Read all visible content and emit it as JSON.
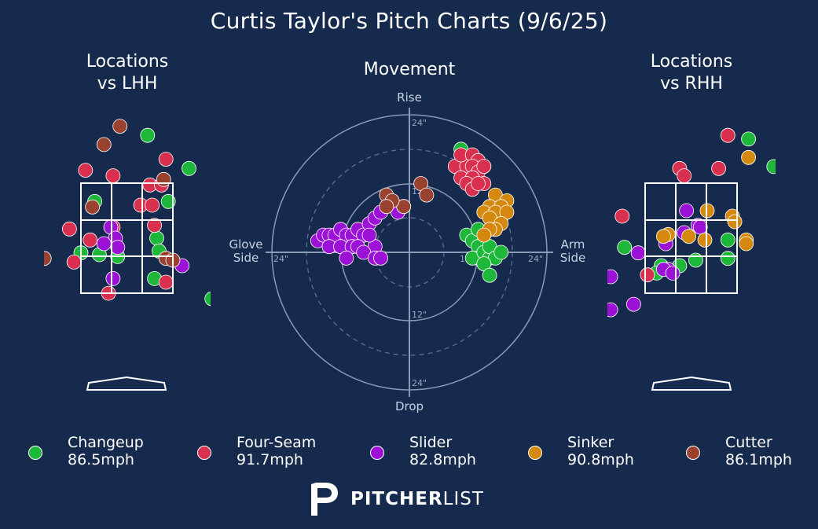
{
  "header": {
    "title": "Curtis Taylor's Pitch Charts (9/6/25)"
  },
  "panels": {
    "left_title": "Locations\nvs LHH",
    "middle_title": "Movement",
    "right_title": "Locations\nvs RHH"
  },
  "movement_axes": {
    "top": "Rise",
    "bottom": "Drop",
    "left": "Glove\nSide",
    "right": "Arm\nSide",
    "ring_labels": {
      "up_outer": "24\"",
      "up_inner": "12\"",
      "down_inner": "12\"",
      "down_outer": "24\"",
      "left_outer": "24\"",
      "right_inner": "12\"",
      "right_outer": "24\""
    }
  },
  "legend": [
    {
      "name": "Changeup",
      "speed": "86.5mph",
      "color": "#1db83a"
    },
    {
      "name": "Four-Seam",
      "speed": "91.7mph",
      "color": "#d9304f"
    },
    {
      "name": "Slider",
      "speed": "82.8mph",
      "color": "#9b12d6"
    },
    {
      "name": "Sinker",
      "speed": "90.8mph",
      "color": "#d4890e"
    },
    {
      "name": "Cutter",
      "speed": "86.1mph",
      "color": "#994230"
    }
  ],
  "brand": {
    "bold": "PITCHER",
    "light": "LIST"
  },
  "chart_data": [
    {
      "type": "scatter",
      "title": "Locations vs LHH",
      "xlim": [
        -2.5,
        2.5
      ],
      "ylim": [
        -3.2,
        3.2
      ],
      "strike_zone": {
        "x": [
          -1,
          1
        ],
        "y": [
          -1.5,
          1.5
        ]
      },
      "series": [
        {
          "name": "Changeup",
          "points": [
            [
              0.45,
              2.8
            ],
            [
              1.35,
              1.9
            ],
            [
              -0.7,
              1.0
            ],
            [
              0.9,
              1.0
            ],
            [
              2.0,
              -0.35
            ],
            [
              -0.6,
              -0.45
            ],
            [
              -1.0,
              -0.4
            ],
            [
              -0.2,
              -0.5
            ],
            [
              0.65,
              0.0
            ],
            [
              0.7,
              -0.35
            ],
            [
              0.6,
              -1.1
            ],
            [
              1.85,
              -1.65
            ]
          ]
        },
        {
          "name": "Four-Seam",
          "points": [
            [
              0.85,
              2.15
            ],
            [
              -0.9,
              1.85
            ],
            [
              -0.3,
              1.7
            ],
            [
              0.5,
              1.45
            ],
            [
              0.75,
              1.45
            ],
            [
              0.3,
              0.9
            ],
            [
              0.55,
              0.9
            ],
            [
              -1.25,
              0.25
            ],
            [
              -0.3,
              0.3
            ],
            [
              0.6,
              0.35
            ],
            [
              -0.8,
              -0.05
            ],
            [
              -1.15,
              -0.65
            ],
            [
              -0.4,
              -1.5
            ],
            [
              0.85,
              -1.2
            ]
          ]
        },
        {
          "name": "Slider",
          "points": [
            [
              -0.35,
              0.3
            ],
            [
              -0.25,
              0.0
            ],
            [
              -0.5,
              -0.15
            ],
            [
              -0.2,
              -0.25
            ],
            [
              1.2,
              -0.75
            ],
            [
              -0.3,
              -1.1
            ]
          ]
        },
        {
          "name": "Cutter",
          "points": [
            [
              -0.15,
              3.05
            ],
            [
              -0.5,
              2.55
            ],
            [
              0.8,
              1.6
            ],
            [
              -0.75,
              0.85
            ],
            [
              0.85,
              -0.55
            ],
            [
              1.0,
              -0.6
            ],
            [
              -1.8,
              -0.55
            ]
          ]
        }
      ]
    },
    {
      "type": "scatter",
      "title": "Movement",
      "xlabel": "Glove Side / Arm Side",
      "ylabel": "Drop / Rise",
      "xlim": [
        -24,
        24
      ],
      "ylim": [
        -24,
        24
      ],
      "rings": [
        6,
        12,
        18,
        24
      ],
      "series": [
        {
          "name": "Changeup",
          "points": [
            [
              10,
              15
            ],
            [
              9,
              18
            ],
            [
              13,
              15
            ],
            [
              10,
              3
            ],
            [
              11,
              2
            ],
            [
              12,
              1
            ],
            [
              12,
              -1
            ],
            [
              11,
              -1
            ],
            [
              13,
              0
            ],
            [
              14,
              -1
            ],
            [
              14,
              1
            ],
            [
              15,
              -1
            ],
            [
              16,
              0
            ],
            [
              15,
              5
            ],
            [
              16,
              6
            ],
            [
              14,
              6
            ],
            [
              12,
              4
            ],
            [
              13,
              -2
            ],
            [
              14,
              -4
            ]
          ]
        },
        {
          "name": "Four-Seam",
          "points": [
            [
              8,
              15
            ],
            [
              10,
              15
            ],
            [
              9,
              17
            ],
            [
              11,
              17
            ],
            [
              12,
              16
            ],
            [
              11,
              15
            ],
            [
              12,
              14
            ],
            [
              9,
              13
            ],
            [
              11,
              13
            ],
            [
              13,
              12
            ],
            [
              10,
              12
            ],
            [
              11,
              11
            ],
            [
              12,
              12
            ],
            [
              13,
              15
            ]
          ]
        },
        {
          "name": "Slider",
          "points": [
            [
              -16,
              2
            ],
            [
              -15,
              3
            ],
            [
              -14,
              3
            ],
            [
              -13,
              3
            ],
            [
              -12,
              4
            ],
            [
              -11,
              3
            ],
            [
              -10,
              3
            ],
            [
              -9,
              4
            ],
            [
              -8,
              3
            ],
            [
              -7,
              5
            ],
            [
              -6,
              6
            ],
            [
              -5,
              7
            ],
            [
              -2,
              7
            ],
            [
              -1,
              8
            ],
            [
              -14,
              1
            ],
            [
              -12,
              1
            ],
            [
              -10,
              1
            ],
            [
              -9,
              1
            ],
            [
              -6,
              1
            ],
            [
              -7,
              3
            ],
            [
              -11,
              -1
            ],
            [
              -8,
              0
            ],
            [
              -6,
              -1
            ],
            [
              -5,
              -1
            ]
          ]
        },
        {
          "name": "Sinker",
          "points": [
            [
              15,
              10
            ],
            [
              17,
              9
            ],
            [
              14,
              8
            ],
            [
              16,
              8
            ],
            [
              13,
              7
            ],
            [
              15,
              7
            ],
            [
              14,
              6
            ],
            [
              17,
              7
            ],
            [
              16,
              5
            ],
            [
              15,
              4
            ],
            [
              14,
              4
            ],
            [
              13,
              3
            ]
          ]
        },
        {
          "name": "Cutter",
          "points": [
            [
              -4,
              10
            ],
            [
              -1,
              8
            ],
            [
              2,
              12
            ],
            [
              3,
              10
            ],
            [
              -3,
              9
            ],
            [
              -4,
              8
            ]
          ]
        }
      ]
    },
    {
      "type": "scatter",
      "title": "Locations vs RHH",
      "xlim": [
        -2.5,
        2.5
      ],
      "ylim": [
        -3.2,
        3.2
      ],
      "strike_zone": {
        "x": [
          -1,
          1
        ],
        "y": [
          -1.5,
          1.5
        ]
      },
      "series": [
        {
          "name": "Changeup",
          "points": [
            [
              1.25,
              2.7
            ],
            [
              1.8,
              1.95
            ],
            [
              0.8,
              -0.05
            ],
            [
              0.1,
              -0.6
            ],
            [
              0.8,
              -0.55
            ],
            [
              -0.25,
              -0.75
            ],
            [
              -0.65,
              -0.75
            ],
            [
              -1.45,
              -0.25
            ],
            [
              -0.75,
              -0.95
            ]
          ]
        },
        {
          "name": "Four-Seam",
          "points": [
            [
              0.8,
              2.8
            ],
            [
              0.6,
              1.9
            ],
            [
              -0.25,
              1.9
            ],
            [
              -0.15,
              1.7
            ],
            [
              -1.5,
              0.6
            ],
            [
              -0.95,
              -1.0
            ]
          ]
        },
        {
          "name": "Slider",
          "points": [
            [
              -0.1,
              0.75
            ],
            [
              -0.15,
              0.15
            ],
            [
              0.15,
              0.35
            ],
            [
              0.2,
              0.3
            ],
            [
              -0.55,
              -0.15
            ],
            [
              -0.5,
              -0.85
            ],
            [
              -0.6,
              -0.85
            ],
            [
              -0.4,
              -0.95
            ],
            [
              -1.15,
              -0.4
            ],
            [
              -1.25,
              -1.8
            ],
            [
              -1.75,
              -1.05
            ],
            [
              -1.75,
              -1.95
            ]
          ]
        },
        {
          "name": "Sinker",
          "points": [
            [
              1.25,
              2.2
            ],
            [
              0.35,
              0.75
            ],
            [
              0.9,
              0.6
            ],
            [
              0.95,
              0.45
            ],
            [
              -0.5,
              0.1
            ],
            [
              -0.05,
              0.05
            ],
            [
              0.3,
              -0.05
            ],
            [
              1.2,
              -0.05
            ],
            [
              1.2,
              -0.15
            ],
            [
              -0.6,
              0.05
            ]
          ]
        }
      ]
    }
  ]
}
